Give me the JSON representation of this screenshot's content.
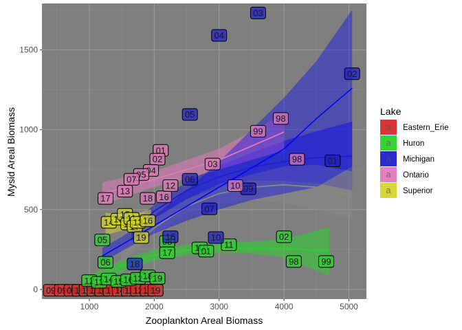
{
  "chart_data": {
    "type": "scatter",
    "title": "",
    "xlabel": "Zooplankton Areal Biomass",
    "ylabel": "Mysid Areal Biomass",
    "xlim": [
      270,
      5270
    ],
    "ylim": [
      -60,
      1790
    ],
    "x_ticks": [
      1000,
      2000,
      3000,
      4000,
      5000
    ],
    "y_ticks": [
      0,
      500,
      1000,
      1500
    ],
    "grid": true,
    "panel_background": "#7f7f7f",
    "legend": {
      "title": "Lake",
      "position": "right"
    },
    "series": [
      {
        "name": "Eastern_Erie",
        "color": "#d72b2b",
        "points": [
          {
            "x": 410,
            "y": -5,
            "label": "09"
          },
          {
            "x": 580,
            "y": -5,
            "label": "09"
          },
          {
            "x": 730,
            "y": -5,
            "label": "09"
          },
          {
            "x": 850,
            "y": -5,
            "label": "16"
          },
          {
            "x": 960,
            "y": -5,
            "label": "18"
          },
          {
            "x": 1080,
            "y": -5,
            "label": "15"
          },
          {
            "x": 1200,
            "y": -5,
            "label": "10"
          },
          {
            "x": 1330,
            "y": -5,
            "label": "17"
          },
          {
            "x": 1470,
            "y": -5,
            "label": "14"
          },
          {
            "x": 1610,
            "y": -5,
            "label": "11"
          },
          {
            "x": 1750,
            "y": -5,
            "label": "12"
          },
          {
            "x": 1900,
            "y": -5,
            "label": "13"
          },
          {
            "x": 2020,
            "y": -5,
            "label": "19"
          }
        ],
        "fit": {
          "x": [
            410,
            1000,
            1500,
            2020
          ],
          "y": [
            -10,
            -8,
            -6,
            -4
          ],
          "lower": [
            -30,
            -22,
            -25,
            -40
          ],
          "upper": [
            10,
            6,
            13,
            32
          ]
        }
      },
      {
        "name": "Huron",
        "color": "#2ad22a",
        "points": [
          {
            "x": 1000,
            "y": 55,
            "label": "12"
          },
          {
            "x": 1150,
            "y": 45,
            "label": "13"
          },
          {
            "x": 1300,
            "y": 65,
            "label": "14"
          },
          {
            "x": 1450,
            "y": 50,
            "label": "15"
          },
          {
            "x": 1600,
            "y": 60,
            "label": "16"
          },
          {
            "x": 1750,
            "y": 70,
            "label": "12"
          },
          {
            "x": 1900,
            "y": 85,
            "label": "18"
          },
          {
            "x": 2050,
            "y": 70,
            "label": "19"
          },
          {
            "x": 1250,
            "y": 170,
            "label": "06"
          },
          {
            "x": 1200,
            "y": 310,
            "label": "05"
          },
          {
            "x": 2200,
            "y": 300,
            "label": "08"
          },
          {
            "x": 2200,
            "y": 230,
            "label": "17"
          },
          {
            "x": 2700,
            "y": 260,
            "label": "10"
          },
          {
            "x": 2800,
            "y": 240,
            "label": "01"
          },
          {
            "x": 3150,
            "y": 280,
            "label": "11"
          },
          {
            "x": 4000,
            "y": 330,
            "label": "02"
          },
          {
            "x": 4150,
            "y": 175,
            "label": "98"
          },
          {
            "x": 4650,
            "y": 175,
            "label": "99"
          }
        ],
        "fit": {
          "x": [
            900,
            1500,
            2000,
            2500,
            3000,
            3500,
            4000,
            4700
          ],
          "y": [
            20,
            150,
            215,
            245,
            258,
            262,
            258,
            240
          ],
          "lower": [
            -25,
            110,
            180,
            215,
            225,
            225,
            200,
            85
          ],
          "upper": [
            70,
            185,
            250,
            280,
            290,
            300,
            315,
            390
          ]
        }
      },
      {
        "name": "Michigan",
        "color": "#1f1fcc",
        "points": [
          {
            "x": 3600,
            "y": 1730,
            "label": "03"
          },
          {
            "x": 3000,
            "y": 1590,
            "label": "04"
          },
          {
            "x": 5050,
            "y": 1350,
            "label": "02"
          },
          {
            "x": 2550,
            "y": 1095,
            "label": "05"
          },
          {
            "x": 4750,
            "y": 805,
            "label": "01"
          },
          {
            "x": 3450,
            "y": 630,
            "label": "99"
          },
          {
            "x": 2550,
            "y": 690,
            "label": "06"
          },
          {
            "x": 2850,
            "y": 505,
            "label": "07"
          },
          {
            "x": 2950,
            "y": 325,
            "label": "10"
          },
          {
            "x": 2250,
            "y": 330,
            "label": "16"
          },
          {
            "x": 1700,
            "y": 160,
            "label": "18"
          }
        ],
        "fit": {
          "x": [
            1650,
            2000,
            2500,
            3000,
            3500,
            4000,
            4500,
            5050
          ],
          "y": [
            355,
            490,
            620,
            705,
            765,
            800,
            825,
            835
          ],
          "lower": [
            300,
            445,
            565,
            640,
            680,
            680,
            665,
            620
          ],
          "upper": [
            410,
            530,
            675,
            775,
            855,
            930,
            990,
            1050
          ]
        }
      },
      {
        "name": "Ontario",
        "color": "#e17aba",
        "points": [
          {
            "x": 3950,
            "y": 1070,
            "label": "98"
          },
          {
            "x": 3600,
            "y": 990,
            "label": "99"
          },
          {
            "x": 2100,
            "y": 870,
            "label": "01"
          },
          {
            "x": 2050,
            "y": 815,
            "label": "02"
          },
          {
            "x": 2900,
            "y": 785,
            "label": "03"
          },
          {
            "x": 4200,
            "y": 815,
            "label": "98"
          },
          {
            "x": 3250,
            "y": 650,
            "label": "10"
          },
          {
            "x": 1950,
            "y": 745,
            "label": "04"
          },
          {
            "x": 1800,
            "y": 720,
            "label": "05"
          },
          {
            "x": 1650,
            "y": 690,
            "label": "07"
          },
          {
            "x": 1550,
            "y": 615,
            "label": "13"
          },
          {
            "x": 1250,
            "y": 570,
            "label": "17"
          },
          {
            "x": 1900,
            "y": 570,
            "label": "18"
          },
          {
            "x": 2150,
            "y": 580,
            "label": "16"
          },
          {
            "x": 2250,
            "y": 650,
            "label": "12"
          }
        ],
        "fit": {
          "x": [
            1200,
            2000,
            3000,
            4000
          ],
          "y": [
            600,
            690,
            810,
            985
          ],
          "lower": [
            530,
            640,
            750,
            870
          ],
          "upper": [
            670,
            740,
            880,
            1100
          ]
        }
      },
      {
        "name": "Superior",
        "color": "#d4d42a",
        "points": [
          {
            "x": 1300,
            "y": 420,
            "label": "14"
          },
          {
            "x": 1450,
            "y": 440,
            "label": "10"
          },
          {
            "x": 1550,
            "y": 470,
            "label": "15"
          },
          {
            "x": 1600,
            "y": 410,
            "label": "12"
          },
          {
            "x": 1650,
            "y": 445,
            "label": "11"
          },
          {
            "x": 1700,
            "y": 395,
            "label": "17"
          },
          {
            "x": 1750,
            "y": 420,
            "label": "13"
          },
          {
            "x": 1800,
            "y": 325,
            "label": "19"
          },
          {
            "x": 1900,
            "y": 430,
            "label": "16"
          }
        ],
        "fit": {
          "x": [
            1250,
            1600,
            1950
          ],
          "y": [
            410,
            420,
            430
          ],
          "lower": [
            340,
            380,
            360
          ],
          "upper": [
            480,
            460,
            500
          ]
        }
      },
      {
        "name": "",
        "color": "#888888",
        "points": [],
        "fit": {
          "x": [
            1500,
            2000,
            2500,
            3000,
            3500,
            4000,
            4500,
            5050
          ],
          "y": [
            200,
            385,
            520,
            600,
            640,
            655,
            640,
            590
          ],
          "lower": [
            160,
            350,
            475,
            540,
            560,
            540,
            500,
            440
          ],
          "upper": [
            240,
            420,
            565,
            660,
            720,
            770,
            780,
            740
          ]
        }
      }
    ],
    "overall_fit": {
      "x": [
        1200,
        1500,
        2000,
        2500,
        3000,
        3500,
        4000,
        4500,
        5050
      ],
      "y": [
        210,
        280,
        400,
        520,
        640,
        760,
        880,
        1070,
        1260
      ],
      "lower": [
        170,
        240,
        350,
        430,
        500,
        560,
        600,
        640,
        770
      ],
      "upper": [
        260,
        330,
        460,
        620,
        800,
        1000,
        1200,
        1430,
        1750
      ],
      "color": "#0000ff"
    }
  }
}
